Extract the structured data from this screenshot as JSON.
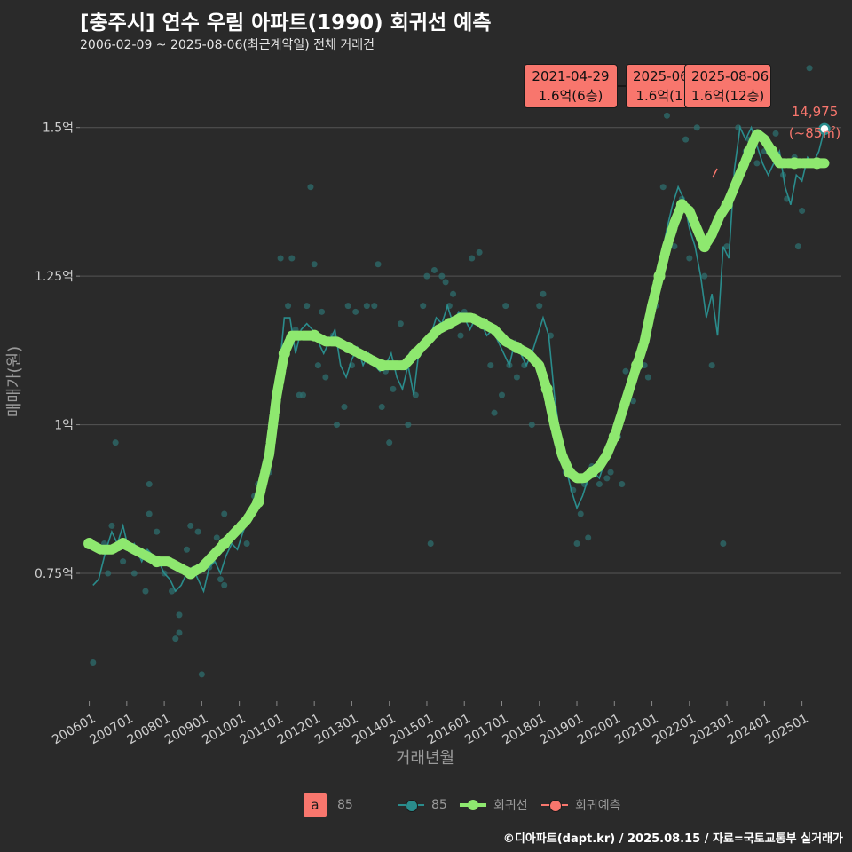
{
  "title": "[충주시] 연수 우림 아파트(1990) 회귀선 예측",
  "subtitle": "2006-02-09 ~ 2025-08-06(최근계약일) 전체 거래건",
  "footer": "©디아파트(dapt.kr) / 2025.08.15 / 자료=국토교통부 실거래가",
  "colors": {
    "background": "#2a2a2a",
    "teal": "#2a8c8c",
    "green": "#8ee86f",
    "red": "#f8766d",
    "grid": "#555555"
  },
  "legend": {
    "box_letter": "a",
    "box_label": "85",
    "series_label": "85",
    "trend_label": "회귀선",
    "forecast_label": "회귀예측"
  },
  "annotations": [
    {
      "date": "2021-04-29",
      "value": "1.6억(6층)"
    },
    {
      "date": "2025-06-",
      "value": "1.6억(1"
    },
    {
      "date": "2025-08-06",
      "value": "1.6억(12층)"
    }
  ],
  "last_point": {
    "value": "14,975",
    "area": "(~85㎡)"
  },
  "chart_data": {
    "type": "scatter",
    "title": "[충주시] 연수 우림 아파트(1990) 회귀선 예측",
    "xlabel": "거래년월",
    "ylabel": "매매가(원)",
    "xlim": [
      2005.75,
      2026.05
    ],
    "ylim": [
      0.535,
      1.625
    ],
    "x_ticks": [
      2006,
      2007,
      2008,
      2009,
      2010,
      2011,
      2012,
      2013,
      2014,
      2015,
      2016,
      2017,
      2018,
      2019,
      2020,
      2021,
      2022,
      2023,
      2024,
      2025
    ],
    "x_tick_labels": [
      "200601",
      "200701",
      "200801",
      "200901",
      "201001",
      "201101",
      "201201",
      "201301",
      "201401",
      "201501",
      "201601",
      "201701",
      "201801",
      "201901",
      "202001",
      "202101",
      "202201",
      "202301",
      "202401",
      "202501"
    ],
    "y_ticks": [
      0.75,
      1.0,
      1.25,
      1.5
    ],
    "y_tick_labels": [
      "0.75억",
      "1억",
      "1.25억",
      "1.5억"
    ],
    "scatter_points": [
      [
        2006.1,
        0.6
      ],
      [
        2006.4,
        0.8
      ],
      [
        2006.5,
        0.75
      ],
      [
        2006.6,
        0.83
      ],
      [
        2006.7,
        0.97
      ],
      [
        2006.8,
        0.8
      ],
      [
        2006.9,
        0.77
      ],
      [
        2007.1,
        0.79
      ],
      [
        2007.2,
        0.75
      ],
      [
        2007.4,
        0.78
      ],
      [
        2007.5,
        0.72
      ],
      [
        2007.6,
        0.85
      ],
      [
        2007.6,
        0.9
      ],
      [
        2007.8,
        0.82
      ],
      [
        2008.0,
        0.75
      ],
      [
        2008.2,
        0.72
      ],
      [
        2008.3,
        0.64
      ],
      [
        2008.4,
        0.65
      ],
      [
        2008.4,
        0.68
      ],
      [
        2008.6,
        0.79
      ],
      [
        2008.7,
        0.83
      ],
      [
        2008.9,
        0.82
      ],
      [
        2009.0,
        0.58
      ],
      [
        2009.2,
        0.76
      ],
      [
        2009.4,
        0.81
      ],
      [
        2009.5,
        0.74
      ],
      [
        2009.6,
        0.73
      ],
      [
        2009.6,
        0.85
      ],
      [
        2009.9,
        0.82
      ],
      [
        2010.2,
        0.8
      ],
      [
        2010.4,
        0.88
      ],
      [
        2010.5,
        0.9
      ],
      [
        2010.8,
        0.92
      ],
      [
        2011.0,
        1.05
      ],
      [
        2011.1,
        1.28
      ],
      [
        2011.3,
        1.2
      ],
      [
        2011.4,
        1.28
      ],
      [
        2011.5,
        1.16
      ],
      [
        2011.6,
        1.05
      ],
      [
        2011.7,
        1.05
      ],
      [
        2011.8,
        1.2
      ],
      [
        2011.9,
        1.4
      ],
      [
        2012.0,
        1.27
      ],
      [
        2012.1,
        1.1
      ],
      [
        2012.2,
        1.19
      ],
      [
        2012.3,
        1.08
      ],
      [
        2012.5,
        1.15
      ],
      [
        2012.6,
        1.0
      ],
      [
        2012.8,
        1.03
      ],
      [
        2012.9,
        1.2
      ],
      [
        2013.0,
        1.1
      ],
      [
        2013.1,
        1.19
      ],
      [
        2013.2,
        1.12
      ],
      [
        2013.4,
        1.2
      ],
      [
        2013.5,
        1.11
      ],
      [
        2013.6,
        1.2
      ],
      [
        2013.7,
        1.27
      ],
      [
        2013.8,
        1.03
      ],
      [
        2013.9,
        1.09
      ],
      [
        2014.0,
        0.97
      ],
      [
        2014.1,
        1.06
      ],
      [
        2014.3,
        1.17
      ],
      [
        2014.4,
        1.1
      ],
      [
        2014.5,
        1.0
      ],
      [
        2014.6,
        1.12
      ],
      [
        2014.7,
        1.05
      ],
      [
        2014.8,
        1.12
      ],
      [
        2014.9,
        1.2
      ],
      [
        2015.0,
        1.25
      ],
      [
        2015.1,
        0.8
      ],
      [
        2015.2,
        1.26
      ],
      [
        2015.4,
        1.25
      ],
      [
        2015.5,
        1.24
      ],
      [
        2015.6,
        1.2
      ],
      [
        2015.7,
        1.22
      ],
      [
        2015.9,
        1.15
      ],
      [
        2016.0,
        1.19
      ],
      [
        2016.2,
        1.28
      ],
      [
        2016.4,
        1.29
      ],
      [
        2016.5,
        1.17
      ],
      [
        2016.7,
        1.1
      ],
      [
        2016.8,
        1.02
      ],
      [
        2017.0,
        1.05
      ],
      [
        2017.1,
        1.2
      ],
      [
        2017.2,
        1.1
      ],
      [
        2017.4,
        1.08
      ],
      [
        2017.6,
        1.1
      ],
      [
        2017.8,
        1.0
      ],
      [
        2018.0,
        1.2
      ],
      [
        2018.1,
        1.22
      ],
      [
        2018.3,
        1.15
      ],
      [
        2018.6,
        0.94
      ],
      [
        2018.7,
        0.92
      ],
      [
        2018.9,
        0.89
      ],
      [
        2019.0,
        0.8
      ],
      [
        2019.1,
        0.85
      ],
      [
        2019.2,
        0.9
      ],
      [
        2019.3,
        0.81
      ],
      [
        2019.4,
        0.93
      ],
      [
        2019.6,
        0.9
      ],
      [
        2019.8,
        0.91
      ],
      [
        2019.9,
        0.92
      ],
      [
        2020.1,
        0.98
      ],
      [
        2020.2,
        0.9
      ],
      [
        2020.3,
        1.09
      ],
      [
        2020.5,
        1.04
      ],
      [
        2020.6,
        1.1
      ],
      [
        2020.8,
        1.1
      ],
      [
        2020.9,
        1.08
      ],
      [
        2021.0,
        1.2
      ],
      [
        2021.1,
        1.2
      ],
      [
        2021.3,
        1.4
      ],
      [
        2021.4,
        1.52
      ],
      [
        2021.6,
        1.3
      ],
      [
        2021.8,
        1.38
      ],
      [
        2021.9,
        1.48
      ],
      [
        2022.0,
        1.28
      ],
      [
        2022.2,
        1.5
      ],
      [
        2022.4,
        1.25
      ],
      [
        2022.6,
        1.1
      ],
      [
        2022.9,
        0.8
      ],
      [
        2023.0,
        1.3
      ],
      [
        2023.3,
        1.5
      ],
      [
        2023.4,
        1.55
      ],
      [
        2023.5,
        1.46
      ],
      [
        2023.6,
        1.48
      ],
      [
        2023.8,
        1.44
      ],
      [
        2024.0,
        1.46
      ],
      [
        2024.3,
        1.49
      ],
      [
        2024.5,
        1.42
      ],
      [
        2024.6,
        1.38
      ],
      [
        2024.8,
        1.45
      ],
      [
        2024.9,
        1.3
      ],
      [
        2025.0,
        1.36
      ],
      [
        2025.2,
        1.6
      ]
    ],
    "series_line": [
      [
        2006.1,
        0.73
      ],
      [
        2006.25,
        0.74
      ],
      [
        2006.45,
        0.79
      ],
      [
        2006.6,
        0.82
      ],
      [
        2006.75,
        0.8
      ],
      [
        2006.9,
        0.83
      ],
      [
        2007.05,
        0.79
      ],
      [
        2007.2,
        0.8
      ],
      [
        2007.4,
        0.77
      ],
      [
        2007.55,
        0.79
      ],
      [
        2007.7,
        0.78
      ],
      [
        2007.85,
        0.77
      ],
      [
        2008.0,
        0.75
      ],
      [
        2008.15,
        0.74
      ],
      [
        2008.3,
        0.72
      ],
      [
        2008.45,
        0.73
      ],
      [
        2008.6,
        0.75
      ],
      [
        2008.75,
        0.76
      ],
      [
        2008.9,
        0.74
      ],
      [
        2009.05,
        0.72
      ],
      [
        2009.2,
        0.76
      ],
      [
        2009.35,
        0.77
      ],
      [
        2009.5,
        0.75
      ],
      [
        2009.65,
        0.78
      ],
      [
        2009.8,
        0.8
      ],
      [
        2009.95,
        0.79
      ],
      [
        2010.1,
        0.82
      ],
      [
        2010.3,
        0.85
      ],
      [
        2010.45,
        0.87
      ],
      [
        2010.6,
        0.88
      ],
      [
        2010.75,
        0.93
      ],
      [
        2010.9,
        1.0
      ],
      [
        2011.05,
        1.08
      ],
      [
        2011.2,
        1.18
      ],
      [
        2011.35,
        1.18
      ],
      [
        2011.5,
        1.12
      ],
      [
        2011.65,
        1.16
      ],
      [
        2011.8,
        1.17
      ],
      [
        2011.95,
        1.16
      ],
      [
        2012.1,
        1.14
      ],
      [
        2012.25,
        1.12
      ],
      [
        2012.4,
        1.14
      ],
      [
        2012.55,
        1.16
      ],
      [
        2012.7,
        1.1
      ],
      [
        2012.85,
        1.08
      ],
      [
        2013.0,
        1.11
      ],
      [
        2013.15,
        1.13
      ],
      [
        2013.3,
        1.1
      ],
      [
        2013.45,
        1.12
      ],
      [
        2013.6,
        1.1
      ],
      [
        2013.75,
        1.09
      ],
      [
        2013.9,
        1.1
      ],
      [
        2014.05,
        1.12
      ],
      [
        2014.2,
        1.08
      ],
      [
        2014.35,
        1.06
      ],
      [
        2014.5,
        1.1
      ],
      [
        2014.65,
        1.05
      ],
      [
        2014.8,
        1.13
      ],
      [
        2014.95,
        1.14
      ],
      [
        2015.1,
        1.15
      ],
      [
        2015.25,
        1.18
      ],
      [
        2015.4,
        1.17
      ],
      [
        2015.55,
        1.2
      ],
      [
        2015.7,
        1.17
      ],
      [
        2015.85,
        1.19
      ],
      [
        2016.0,
        1.18
      ],
      [
        2016.15,
        1.16
      ],
      [
        2016.3,
        1.18
      ],
      [
        2016.45,
        1.17
      ],
      [
        2016.6,
        1.15
      ],
      [
        2016.75,
        1.16
      ],
      [
        2016.9,
        1.14
      ],
      [
        2017.05,
        1.12
      ],
      [
        2017.2,
        1.1
      ],
      [
        2017.35,
        1.14
      ],
      [
        2017.5,
        1.12
      ],
      [
        2017.65,
        1.1
      ],
      [
        2017.8,
        1.12
      ],
      [
        2017.95,
        1.15
      ],
      [
        2018.1,
        1.18
      ],
      [
        2018.25,
        1.15
      ],
      [
        2018.4,
        1.05
      ],
      [
        2018.55,
        0.98
      ],
      [
        2018.7,
        0.93
      ],
      [
        2018.85,
        0.89
      ],
      [
        2019.0,
        0.86
      ],
      [
        2019.15,
        0.88
      ],
      [
        2019.3,
        0.91
      ],
      [
        2019.45,
        0.92
      ],
      [
        2019.6,
        0.91
      ],
      [
        2019.75,
        0.94
      ],
      [
        2019.9,
        0.96
      ],
      [
        2020.05,
        0.98
      ],
      [
        2020.2,
        1.02
      ],
      [
        2020.35,
        1.06
      ],
      [
        2020.5,
        1.08
      ],
      [
        2020.65,
        1.12
      ],
      [
        2020.8,
        1.15
      ],
      [
        2020.95,
        1.2
      ],
      [
        2021.1,
        1.22
      ],
      [
        2021.25,
        1.28
      ],
      [
        2021.4,
        1.33
      ],
      [
        2021.55,
        1.37
      ],
      [
        2021.7,
        1.4
      ],
      [
        2021.85,
        1.38
      ],
      [
        2022.0,
        1.33
      ],
      [
        2022.15,
        1.3
      ],
      [
        2022.3,
        1.25
      ],
      [
        2022.45,
        1.18
      ],
      [
        2022.6,
        1.22
      ],
      [
        2022.75,
        1.15
      ],
      [
        2022.9,
        1.3
      ],
      [
        2023.05,
        1.28
      ],
      [
        2023.2,
        1.43
      ],
      [
        2023.35,
        1.5
      ],
      [
        2023.5,
        1.48
      ],
      [
        2023.65,
        1.5
      ],
      [
        2023.8,
        1.47
      ],
      [
        2023.95,
        1.44
      ],
      [
        2024.1,
        1.42
      ],
      [
        2024.25,
        1.44
      ],
      [
        2024.4,
        1.46
      ],
      [
        2024.55,
        1.4
      ],
      [
        2024.7,
        1.37
      ],
      [
        2024.85,
        1.42
      ],
      [
        2025.0,
        1.41
      ],
      [
        2025.15,
        1.45
      ],
      [
        2025.3,
        1.44
      ],
      [
        2025.45,
        1.46
      ],
      [
        2025.6,
        1.4975
      ]
    ],
    "trend_line": [
      [
        2006.0,
        0.8
      ],
      [
        2006.3,
        0.79
      ],
      [
        2006.6,
        0.79
      ],
      [
        2006.9,
        0.8
      ],
      [
        2007.2,
        0.79
      ],
      [
        2007.5,
        0.78
      ],
      [
        2007.8,
        0.77
      ],
      [
        2008.1,
        0.77
      ],
      [
        2008.4,
        0.76
      ],
      [
        2008.7,
        0.75
      ],
      [
        2009.0,
        0.76
      ],
      [
        2009.3,
        0.78
      ],
      [
        2009.6,
        0.8
      ],
      [
        2009.9,
        0.82
      ],
      [
        2010.2,
        0.84
      ],
      [
        2010.5,
        0.87
      ],
      [
        2010.8,
        0.95
      ],
      [
        2011.0,
        1.05
      ],
      [
        2011.2,
        1.12
      ],
      [
        2011.4,
        1.15
      ],
      [
        2011.7,
        1.15
      ],
      [
        2012.0,
        1.15
      ],
      [
        2012.3,
        1.14
      ],
      [
        2012.6,
        1.14
      ],
      [
        2012.9,
        1.13
      ],
      [
        2013.2,
        1.12
      ],
      [
        2013.5,
        1.11
      ],
      [
        2013.8,
        1.1
      ],
      [
        2014.1,
        1.1
      ],
      [
        2014.4,
        1.1
      ],
      [
        2014.7,
        1.12
      ],
      [
        2015.0,
        1.14
      ],
      [
        2015.3,
        1.16
      ],
      [
        2015.6,
        1.17
      ],
      [
        2015.9,
        1.18
      ],
      [
        2016.2,
        1.18
      ],
      [
        2016.5,
        1.17
      ],
      [
        2016.8,
        1.16
      ],
      [
        2017.1,
        1.14
      ],
      [
        2017.4,
        1.13
      ],
      [
        2017.7,
        1.12
      ],
      [
        2018.0,
        1.1
      ],
      [
        2018.2,
        1.06
      ],
      [
        2018.4,
        1.0
      ],
      [
        2018.6,
        0.95
      ],
      [
        2018.8,
        0.92
      ],
      [
        2019.0,
        0.91
      ],
      [
        2019.2,
        0.91
      ],
      [
        2019.4,
        0.92
      ],
      [
        2019.6,
        0.93
      ],
      [
        2019.8,
        0.95
      ],
      [
        2020.0,
        0.98
      ],
      [
        2020.2,
        1.02
      ],
      [
        2020.4,
        1.06
      ],
      [
        2020.6,
        1.1
      ],
      [
        2020.8,
        1.14
      ],
      [
        2021.0,
        1.2
      ],
      [
        2021.2,
        1.25
      ],
      [
        2021.4,
        1.3
      ],
      [
        2021.6,
        1.34
      ],
      [
        2021.8,
        1.37
      ],
      [
        2022.0,
        1.36
      ],
      [
        2022.2,
        1.33
      ],
      [
        2022.4,
        1.3
      ],
      [
        2022.6,
        1.32
      ],
      [
        2022.8,
        1.35
      ],
      [
        2023.0,
        1.37
      ],
      [
        2023.2,
        1.4
      ],
      [
        2023.4,
        1.43
      ],
      [
        2023.6,
        1.46
      ],
      [
        2023.8,
        1.49
      ],
      [
        2024.0,
        1.48
      ],
      [
        2024.2,
        1.46
      ],
      [
        2024.4,
        1.44
      ],
      [
        2024.6,
        1.44
      ],
      [
        2024.8,
        1.44
      ],
      [
        2025.0,
        1.44
      ],
      [
        2025.2,
        1.44
      ],
      [
        2025.4,
        1.44
      ],
      [
        2025.6,
        1.44
      ]
    ],
    "last_point": [
      2025.6,
      1.4975
    ]
  }
}
